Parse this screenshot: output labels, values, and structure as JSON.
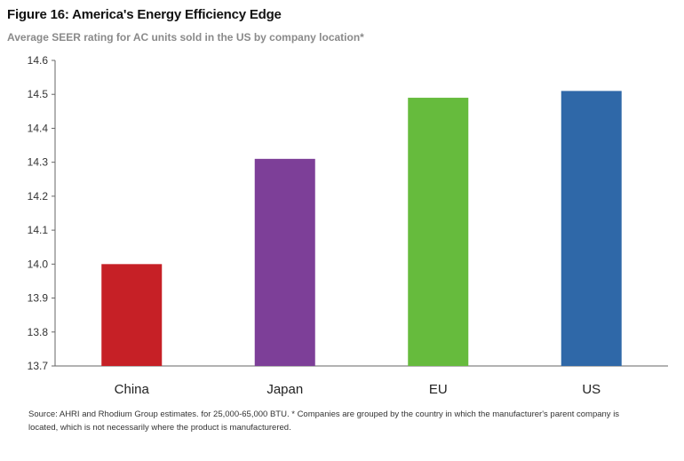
{
  "title": "Figure 16: America's Energy Efficiency Edge",
  "subtitle": "Average SEER rating for AC units sold in the US by company location*",
  "source": "Source: AHRI and Rhodium Group estimates. for 25,000-65,000 BTU. * Companies are grouped by the country in which the manufacturer's parent company is located, which is not necessarily where the product is manufacturered.",
  "chart_data": {
    "type": "bar",
    "title": "Figure 16: America's Energy Efficiency Edge",
    "subtitle": "Average SEER rating for AC units sold in the US by company location*",
    "categories": [
      "China",
      "Japan",
      "EU",
      "US"
    ],
    "values": [
      14.0,
      14.31,
      14.49,
      14.51
    ],
    "colors": [
      "#c62026",
      "#7d3f98",
      "#66bb3d",
      "#2f68a8"
    ],
    "xlabel": "",
    "ylabel": "",
    "ylim": [
      13.7,
      14.6
    ],
    "yticks": [
      "14.6",
      "14.5",
      "14.4",
      "14.3",
      "14.2",
      "14.1",
      "14.0",
      "13.9",
      "13.8",
      "13.7"
    ],
    "grid": false,
    "legend": "none"
  }
}
